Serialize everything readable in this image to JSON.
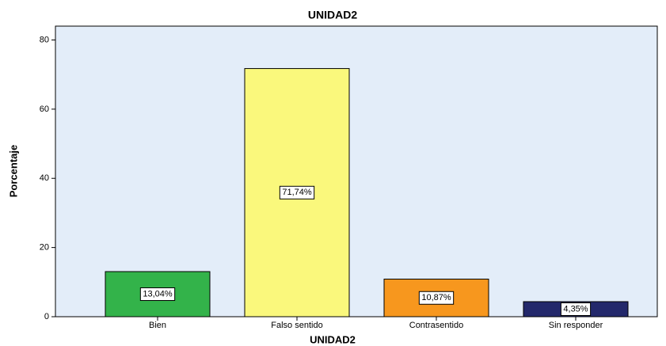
{
  "chart_data": {
    "type": "bar",
    "title": "UNIDAD2",
    "x_label": "UNIDAD2",
    "y_label": "Porcentaje",
    "categories": [
      "Bien",
      "Falso sentido",
      "Contrasentido",
      "Sin responder"
    ],
    "values": [
      13.04,
      71.74,
      10.87,
      4.35
    ],
    "value_labels": [
      "13,04%",
      "71,74%",
      "10,87%",
      "4,35%"
    ],
    "colors": [
      "#33b34a",
      "#faf87c",
      "#f7971e",
      "#23286b"
    ],
    "ylim": [
      0,
      84
    ],
    "yticks": [
      0,
      20,
      40,
      60,
      80
    ],
    "grid": false
  }
}
